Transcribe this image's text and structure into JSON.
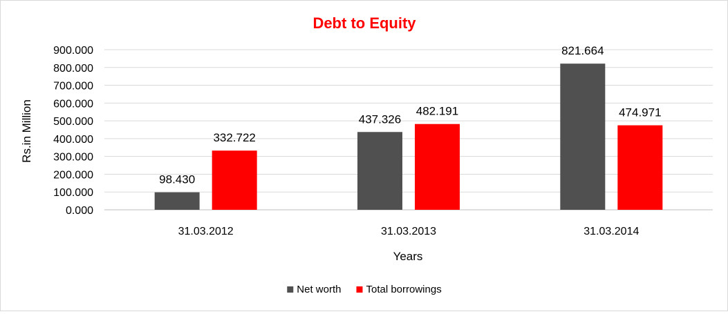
{
  "chart_data": {
    "type": "bar",
    "title": "Debt to Equity",
    "xlabel": "Years",
    "ylabel": "Rs.in Million",
    "categories": [
      "31.03.2012",
      "31.03.2013",
      "31.03.2014"
    ],
    "series": [
      {
        "name": "Net worth",
        "color": "#505050",
        "values": [
          98.43,
          437.326,
          821.664
        ],
        "labels": [
          "98.430",
          "437.326",
          "821.664"
        ]
      },
      {
        "name": "Total borrowings",
        "color": "#ff0000",
        "values": [
          332.722,
          482.191,
          474.971
        ],
        "labels": [
          "332.722",
          "482.191",
          "474.971"
        ]
      }
    ],
    "ylim": [
      0,
      900
    ],
    "yticks": [
      "0.000",
      "100.000",
      "200.000",
      "300.000",
      "400.000",
      "500.000",
      "600.000",
      "700.000",
      "800.000",
      "900.000"
    ],
    "grid": true,
    "legend_position": "bottom",
    "title_color": "#ff0000"
  }
}
